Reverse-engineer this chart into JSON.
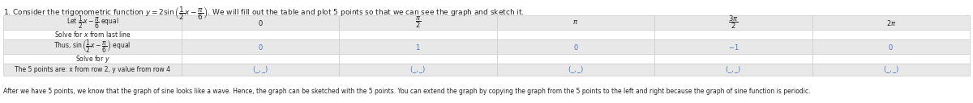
{
  "title": "1. Consider the trigonometric function $y = 2\\sin\\left(\\dfrac{1}{2}x - \\dfrac{\\pi}{6}\\right)$. We will fill out the table and plot 5 points so that we can see the graph and sketch it.",
  "row1_label": "Let $\\dfrac{1}{2}x - \\dfrac{\\pi}{6}$ equal",
  "row2_label": "Solve for $x$ from last line",
  "row3_label": "Thus, $\\sin\\left(\\dfrac{1}{2}x - \\dfrac{\\pi}{6}\\right)$ equal",
  "row4_label": "Solve for $y$",
  "row5_label": "The 5 points are: x from row 2, y value from row 4",
  "col_values_row1": [
    "$0$",
    "$\\dfrac{\\pi}{2}$",
    "$\\pi$",
    "$\\dfrac{3\\pi}{2}$",
    "$2\\pi$"
  ],
  "col_values_row2": [
    "",
    "",
    "",
    "",
    ""
  ],
  "col_values_row3": [
    "$0$",
    "$1$",
    "$0$",
    "$-1$",
    "$0$"
  ],
  "col_values_row4": [
    "",
    "",
    "",
    "",
    ""
  ],
  "col_values_row5": [
    "$(\\_,\\_)$",
    "$(\\_,\\_)$",
    "$(\\_,\\_)$",
    "$(\\_,\\_)$",
    "$(\\_,\\_)$"
  ],
  "footer": "After we have 5 points, we know that the graph of sine looks like a wave. Hence, the graph can be sketched with the 5 points. You can extend the graph by copying the graph from the 5 points to the left and right because the graph of sine function is periodic.",
  "bg_color": "#ffffff",
  "header_bg": "#f2f2f2",
  "row_bg_odd": "#ffffff",
  "row_bg_even": "#e8e8e8",
  "border_color": "#cccccc",
  "text_color": "#222222",
  "blue_color": "#4472c4"
}
